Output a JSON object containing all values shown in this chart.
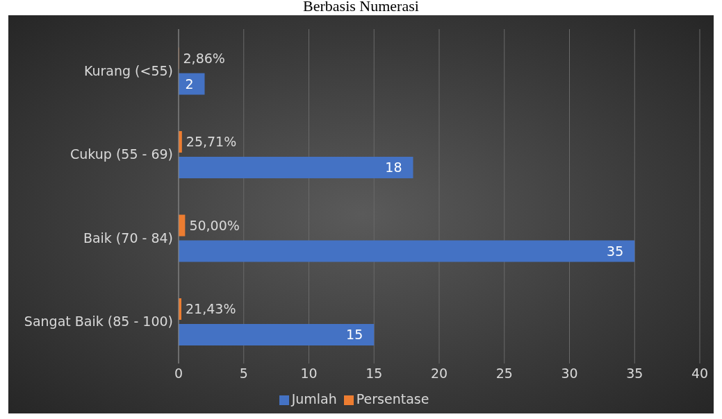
{
  "chart_data": {
    "type": "bar",
    "orientation": "horizontal",
    "title": "Berbasis Numerasi",
    "categories": [
      "Kurang (<55)",
      "Cukup (55 - 69)",
      "Baik (70 - 84)",
      "Sangat Baik (85 - 100)"
    ],
    "series": [
      {
        "name": "Persentase",
        "color": "#ed7d31",
        "values": [
          0.0286,
          0.2571,
          0.5,
          0.2143
        ],
        "value_labels": [
          "2,86%",
          "25,71%",
          "50,00%",
          "21,43%"
        ]
      },
      {
        "name": "Jumlah",
        "color": "#4472c4",
        "values": [
          2,
          18,
          35,
          15
        ],
        "value_labels": [
          "2",
          "18",
          "35",
          "15"
        ]
      }
    ],
    "xlim": [
      0,
      40
    ],
    "xticks": [
      0,
      5,
      10,
      15,
      20,
      25,
      30,
      35,
      40
    ],
    "grid": "x",
    "legend": "bottom"
  }
}
